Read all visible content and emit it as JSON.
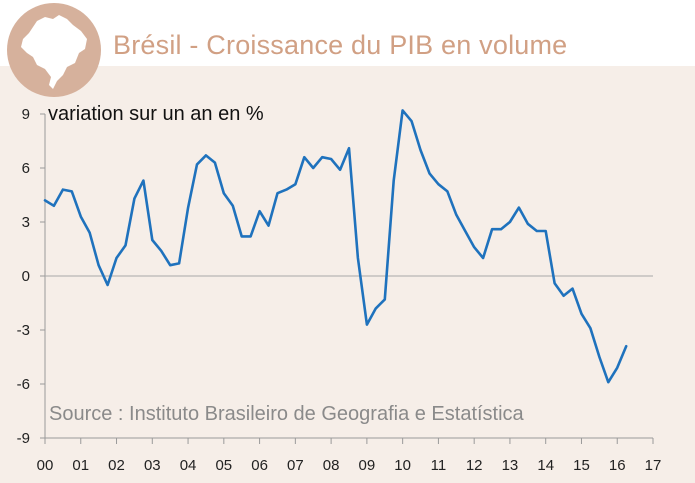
{
  "header": {
    "title": "Brésil - Croissance du PIB en volume",
    "badge_icon": "brazil-map-icon",
    "badge_color": "#d6b19c",
    "title_color": "#d1a084"
  },
  "chart_data": {
    "type": "line",
    "title": "Brésil - Croissance du PIB en volume",
    "subtitle": "variation sur un an en %",
    "annotation": "Source : Instituto Brasileiro de Geografia e Estatística",
    "xlabel": "",
    "ylabel": "",
    "xlim": [
      2000,
      2017
    ],
    "ylim": [
      -9,
      9
    ],
    "x_tick_labels": [
      "00",
      "01",
      "02",
      "03",
      "04",
      "05",
      "06",
      "07",
      "08",
      "09",
      "10",
      "11",
      "12",
      "13",
      "14",
      "15",
      "16",
      "17"
    ],
    "y_ticks": [
      9,
      6,
      3,
      0,
      -3,
      -6,
      -9
    ],
    "grid": false,
    "zero_line": true,
    "line_color": "#1f72bd",
    "panel_color": "#f6eee8",
    "series": [
      {
        "x": [
          2000.0,
          2000.25,
          2000.5,
          2000.75,
          2001.0,
          2001.25,
          2001.5,
          2001.75,
          2002.0,
          2002.25,
          2002.5,
          2002.75,
          2003.0,
          2003.25,
          2003.5,
          2003.75,
          2004.0,
          2004.25,
          2004.5,
          2004.75,
          2005.0,
          2005.25,
          2005.5,
          2005.75,
          2006.0,
          2006.25,
          2006.5,
          2006.75,
          2007.0,
          2007.25,
          2007.5,
          2007.75,
          2008.0,
          2008.25,
          2008.5,
          2008.75,
          2009.0,
          2009.25,
          2009.5,
          2009.75,
          2010.0,
          2010.25,
          2010.5,
          2010.75,
          2011.0,
          2011.25,
          2011.5,
          2011.75,
          2012.0,
          2012.25,
          2012.5,
          2012.75,
          2013.0,
          2013.25,
          2013.5,
          2013.75,
          2014.0,
          2014.25,
          2014.5,
          2014.75,
          2015.0,
          2015.25,
          2015.5,
          2015.75,
          2016.0,
          2016.25
        ],
        "y": [
          4.2,
          3.9,
          4.8,
          4.7,
          3.3,
          2.4,
          0.6,
          -0.5,
          1.0,
          1.7,
          4.3,
          5.3,
          2.0,
          1.4,
          0.6,
          0.7,
          3.8,
          6.2,
          6.7,
          6.3,
          4.6,
          3.9,
          2.2,
          2.2,
          3.6,
          2.8,
          4.6,
          4.8,
          5.1,
          6.6,
          6.0,
          6.6,
          6.5,
          5.9,
          7.1,
          1.0,
          -2.7,
          -1.8,
          -1.3,
          5.3,
          9.2,
          8.6,
          7.0,
          5.7,
          5.1,
          4.7,
          3.4,
          2.5,
          1.6,
          1.0,
          2.6,
          2.6,
          3.0,
          3.8,
          2.9,
          2.5,
          2.5,
          -0.4,
          -1.1,
          -0.7,
          -2.1,
          -2.9,
          -4.5,
          -5.9,
          -5.1,
          -3.9
        ]
      }
    ]
  }
}
